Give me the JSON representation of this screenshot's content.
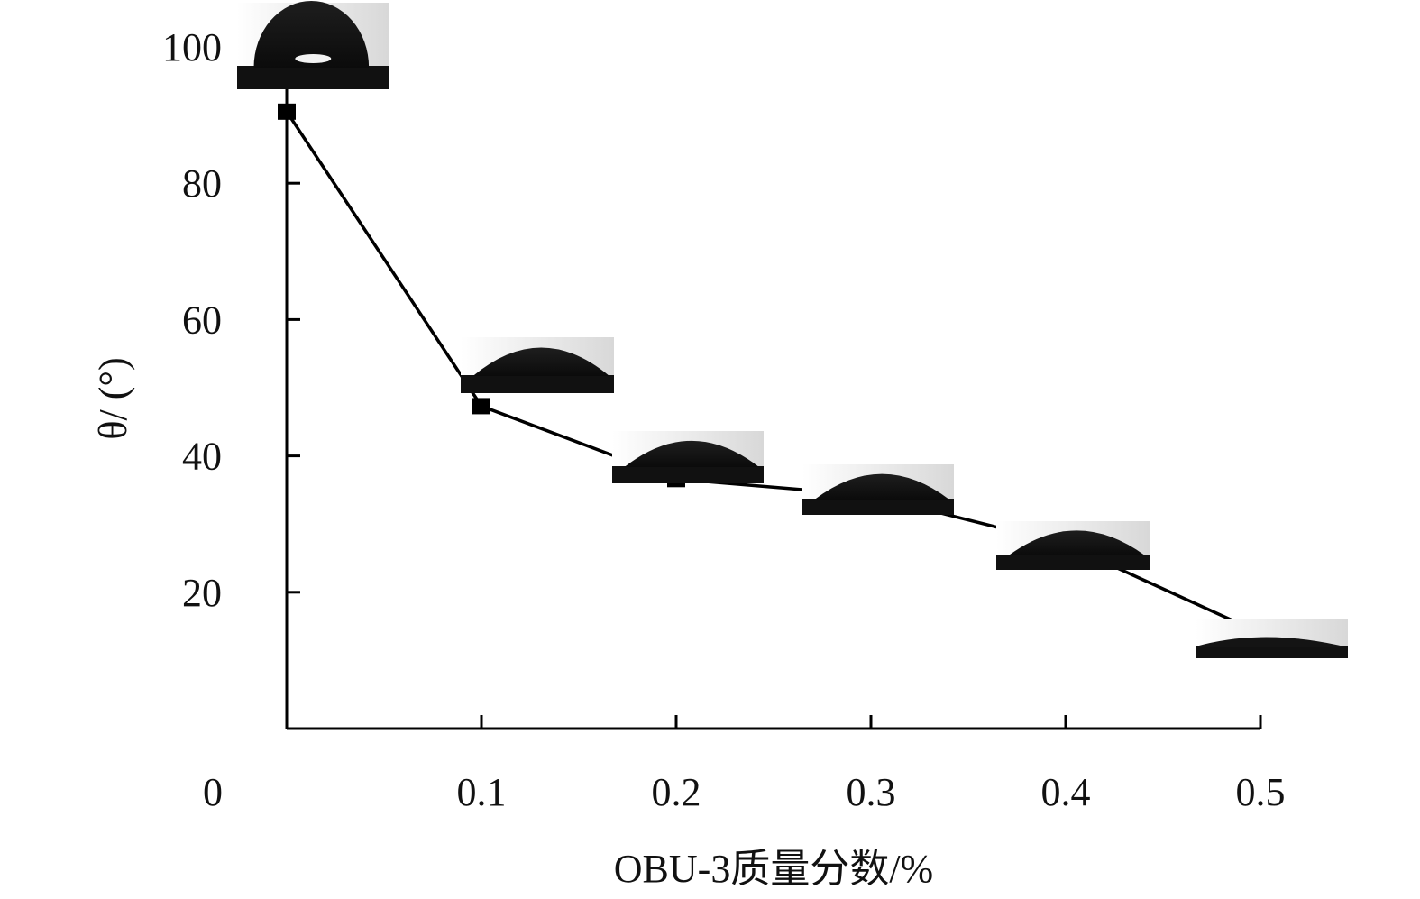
{
  "chart_data": {
    "type": "line",
    "title": "",
    "xlabel": "OBU-3质量分数/%",
    "ylabel": "θ/ (°)",
    "xlim": [
      0,
      0.5
    ],
    "ylim": [
      0,
      100
    ],
    "x_ticks": [
      0,
      0.1,
      0.2,
      0.3,
      0.4,
      0.5
    ],
    "x_tick_labels": [
      "0",
      "0.1",
      "0.2",
      "0.3",
      "0.4",
      "0.5"
    ],
    "y_ticks": [
      20,
      40,
      60,
      80,
      100
    ],
    "y_tick_labels": [
      "20",
      "40",
      "60",
      "80",
      "100"
    ],
    "grid": false,
    "legend": "none",
    "marker": "square",
    "line_color": "#000000",
    "series": [
      {
        "x": [
          0,
          0.1,
          0.2,
          0.3,
          0.4,
          0.5
        ],
        "y": [
          90.5,
          47.3,
          36.6,
          34.2,
          27.0,
          14.0
        ]
      }
    ],
    "droplet_insets": [
      {
        "x": 0,
        "shape": "sphere"
      },
      {
        "x": 0.1,
        "shape": "cap"
      },
      {
        "x": 0.2,
        "shape": "cap"
      },
      {
        "x": 0.3,
        "shape": "cap"
      },
      {
        "x": 0.4,
        "shape": "cap"
      },
      {
        "x": 0.5,
        "shape": "flat"
      }
    ]
  }
}
